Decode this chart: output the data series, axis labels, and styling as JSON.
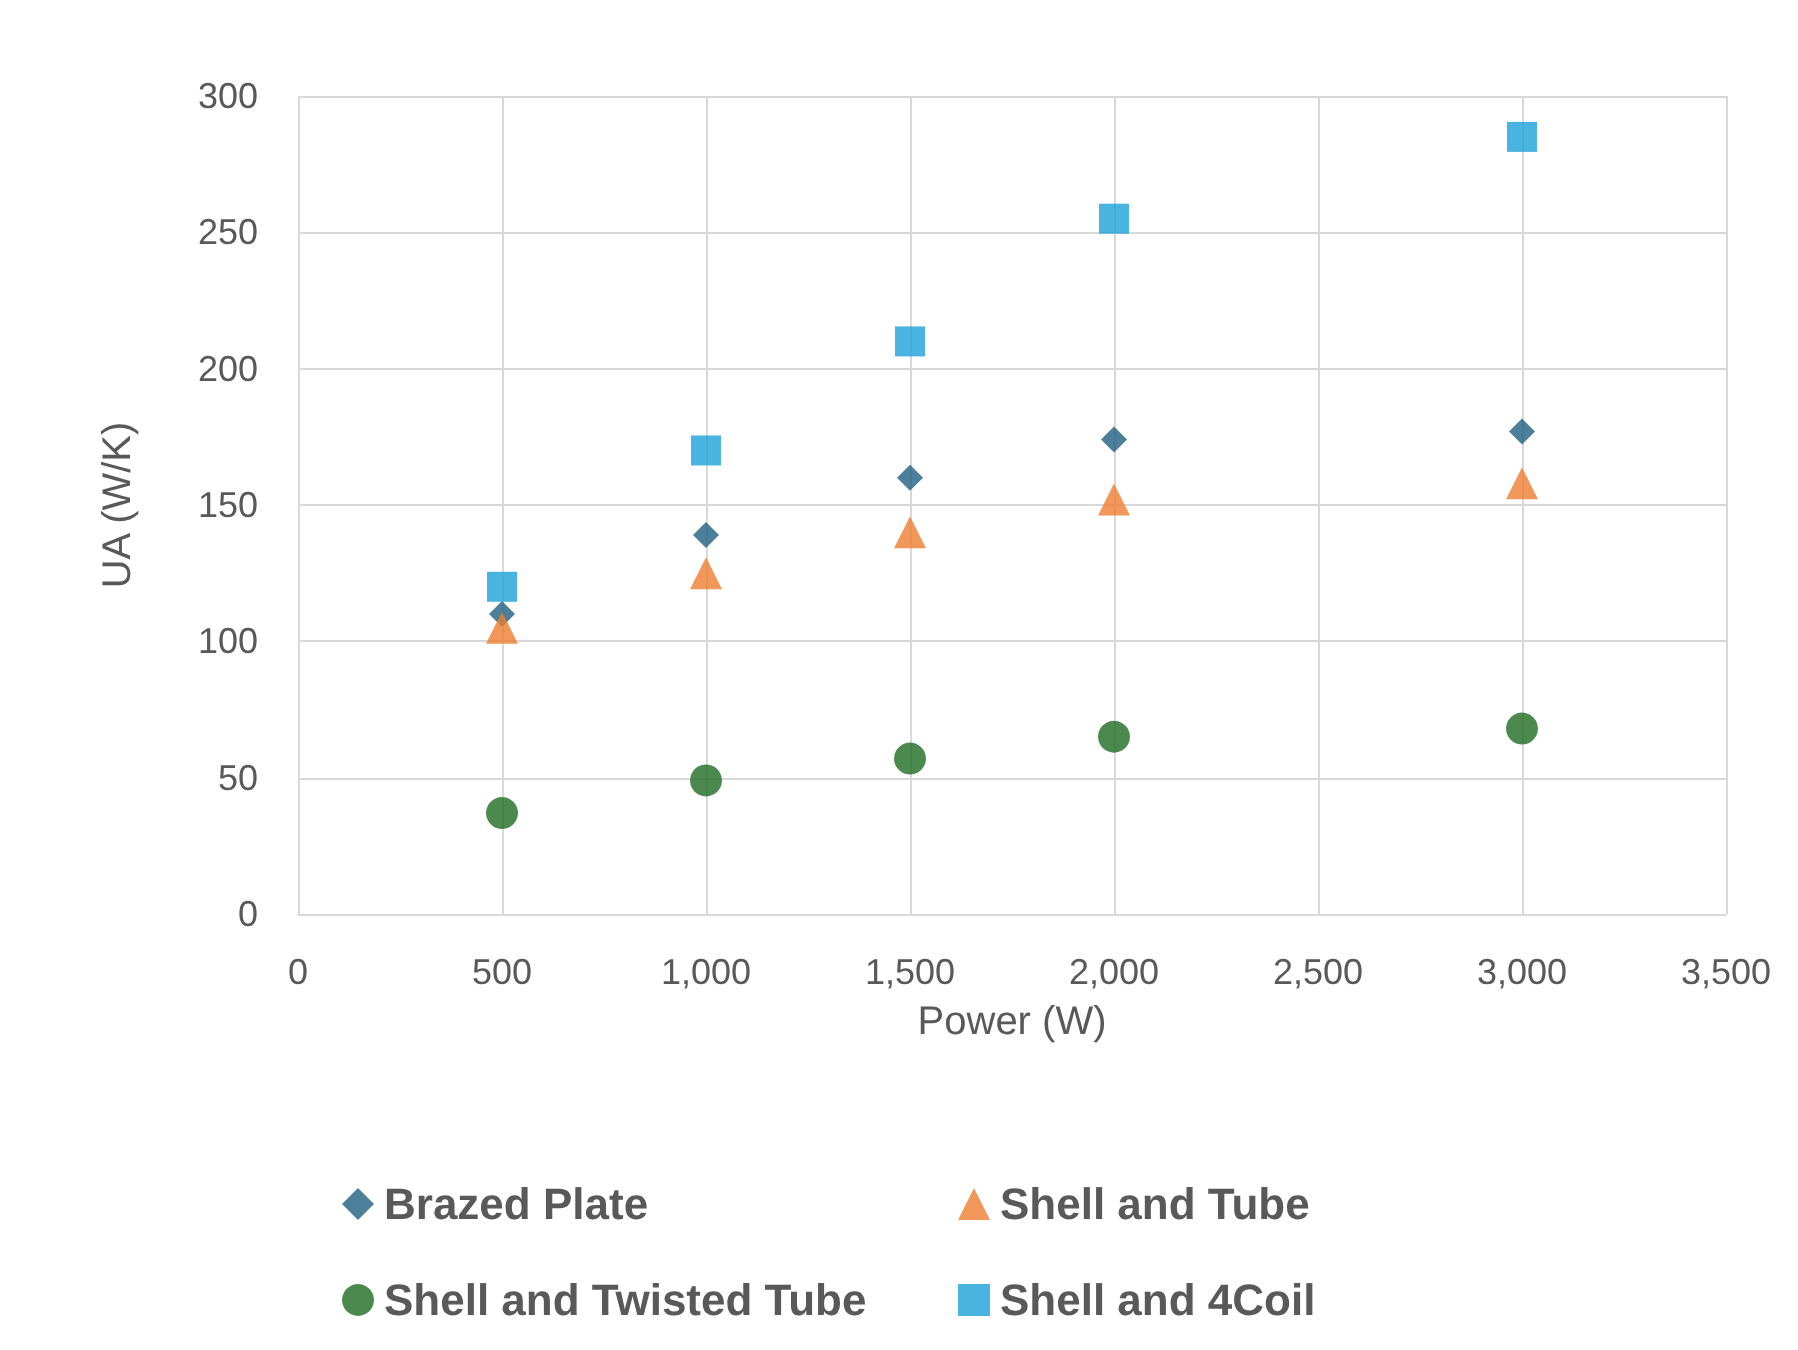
{
  "chart_data": {
    "type": "scatter",
    "xlabel": "Power (W)",
    "ylabel": "UA (W/K)",
    "xlim": [
      0,
      3500
    ],
    "xticks": [
      {
        "value": 0,
        "label": "0"
      },
      {
        "value": 500,
        "label": "500"
      },
      {
        "value": 1000,
        "label": "1,000"
      },
      {
        "value": 1500,
        "label": "1,500"
      },
      {
        "value": 2000,
        "label": "2,000"
      },
      {
        "value": 2500,
        "label": "2,500"
      },
      {
        "value": 3000,
        "label": "3,000"
      },
      {
        "value": 3500,
        "label": "3,500"
      }
    ],
    "ylim": [
      0,
      300
    ],
    "yticks": [
      0,
      50,
      100,
      150,
      200,
      250,
      300
    ],
    "grid": true,
    "legend": "bottom",
    "x": [
      500,
      1000,
      1500,
      2000,
      3000
    ],
    "series": [
      {
        "name": "Brazed Plate",
        "color": "#1f5f7f",
        "marker": "diamond",
        "values": [
          110,
          139,
          160,
          174,
          177
        ]
      },
      {
        "name": "Shell and Tube",
        "color": "#ed7d31",
        "marker": "triangle",
        "values": [
          105,
          125,
          140,
          152,
          158
        ]
      },
      {
        "name": "Shell and Twisted Tube",
        "color": "#1e6b23",
        "marker": "circle",
        "values": [
          37,
          49,
          57,
          65,
          68
        ]
      },
      {
        "name": "Shell and 4Coil",
        "color": "#1ba1d8",
        "marker": "square",
        "values": [
          120,
          170,
          210,
          255,
          285
        ]
      }
    ]
  }
}
